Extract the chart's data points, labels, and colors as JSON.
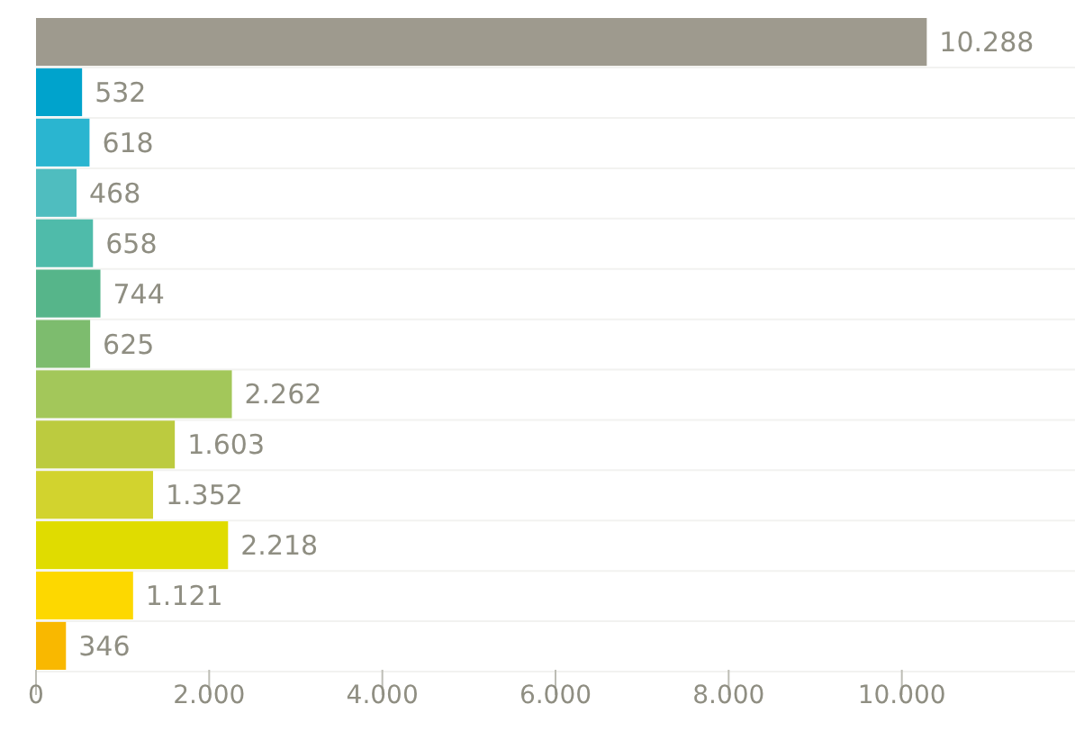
{
  "chart_data": {
    "type": "bar",
    "orientation": "horizontal",
    "categories": [
      null,
      null,
      null,
      null,
      null,
      null,
      null,
      null,
      null,
      null,
      null,
      null,
      null
    ],
    "values": [
      10288,
      532,
      618,
      468,
      658,
      744,
      625,
      2262,
      1603,
      1352,
      2218,
      1121,
      346
    ],
    "colors": [
      "#9e9a8e",
      "#00a3cc",
      "#2ab5d0",
      "#4fbdbf",
      "#4fbbaa",
      "#56b58a",
      "#7dbc6e",
      "#a3c75a",
      "#bccb3f",
      "#d2d32e",
      "#e0dc00",
      "#fdd800",
      "#f9b800"
    ],
    "value_labels": [
      "10.288",
      "532",
      "618",
      "468",
      "658",
      "744",
      "625",
      "2.262",
      "1.603",
      "1.352",
      "2.218",
      "1.121",
      "346"
    ],
    "xlim": [
      0,
      12000
    ],
    "xticks": [
      {
        "value": 0,
        "label": "0"
      },
      {
        "value": 2000,
        "label": "2.000"
      },
      {
        "value": 4000,
        "label": "4.000"
      },
      {
        "value": 6000,
        "label": "6.000"
      },
      {
        "value": 8000,
        "label": "8.000"
      },
      {
        "value": 10000,
        "label": "10.000"
      }
    ]
  }
}
